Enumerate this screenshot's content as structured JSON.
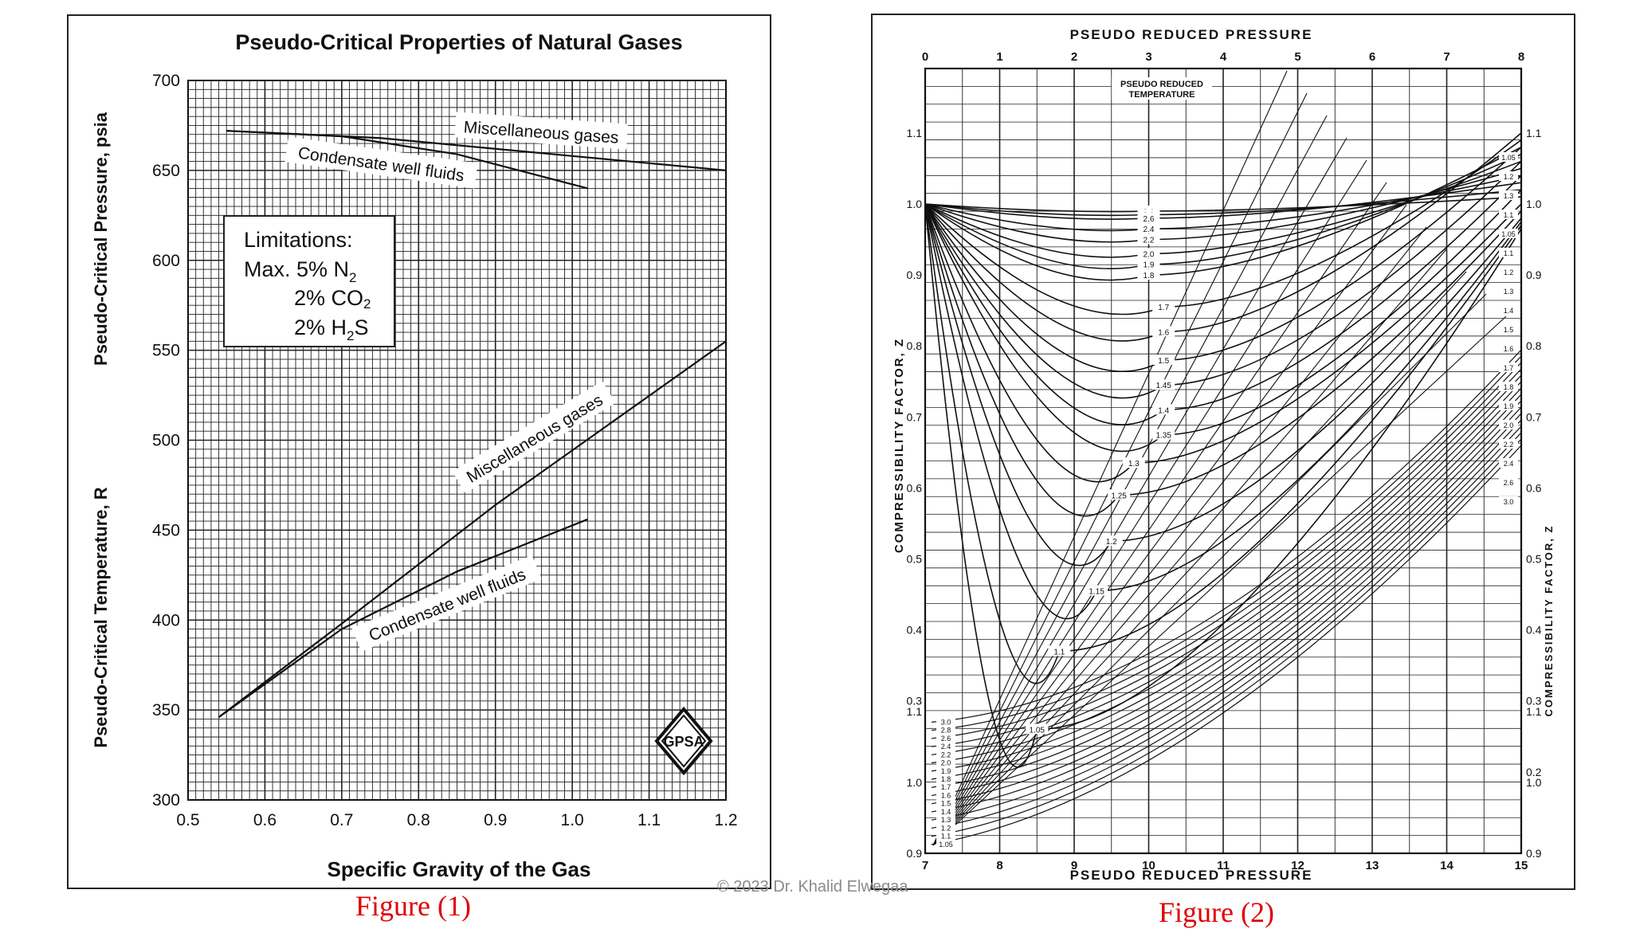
{
  "chart_data": [
    {
      "type": "line",
      "title": "Pseudo-Critical Properties of Natural Gases",
      "xlabel": "Specific Gravity of the Gas",
      "ylabel_top": "Pseudo-Critical Pressure, psia",
      "ylabel_bottom": "Pseudo-Critical Temperature, R",
      "xlim": [
        0.5,
        1.2
      ],
      "ylim": [
        300,
        700
      ],
      "x_ticks": [
        "0.5",
        "0.6",
        "0.7",
        "0.8",
        "0.9",
        "1.0",
        "1.1",
        "1.2"
      ],
      "y_ticks": [
        "300",
        "350",
        "400",
        "450",
        "500",
        "550",
        "600",
        "650",
        "700"
      ],
      "grid": true,
      "series": [
        {
          "name": "Miscellaneous gases",
          "property": "pressure",
          "x": [
            0.55,
            0.75,
            1.0,
            1.2
          ],
          "values": [
            672,
            668,
            658,
            650
          ]
        },
        {
          "name": "Condensate well fluids",
          "property": "pressure",
          "x": [
            0.55,
            0.7,
            0.85,
            1.02
          ],
          "values": [
            672,
            669,
            659,
            640
          ]
        },
        {
          "name": "Miscellaneous gases",
          "property": "temperature",
          "x": [
            0.54,
            0.7,
            0.9,
            1.2
          ],
          "values": [
            346,
            398,
            464,
            555
          ]
        },
        {
          "name": "Condensate well fluids",
          "property": "temperature",
          "x": [
            0.54,
            0.7,
            0.85,
            1.02
          ],
          "values": [
            346,
            395,
            427,
            456
          ]
        }
      ],
      "annotation": {
        "title": "Limitations:",
        "lines": [
          {
            "text": "Max. 5% N",
            "sub": "2"
          },
          {
            "text": "2% CO",
            "sub": "2"
          },
          {
            "text": "2% H",
            "sub": "2",
            "tail": "S"
          }
        ]
      },
      "logo": "gpsa-diamond-logo"
    },
    {
      "type": "line",
      "xlabel_top": "PSEUDO REDUCED PRESSURE",
      "xlabel_bottom": "PSEUDO REDUCED PRESSURE",
      "ylabel_left": "COMPRESSIBILITY FACTOR, Z",
      "ylabel_right": "COMPRESSIBILITY FACTOR, Z",
      "top_axis": {
        "range": [
          0,
          8
        ],
        "ticks": [
          "0",
          "1",
          "2",
          "3",
          "4",
          "5",
          "6",
          "7",
          "8"
        ]
      },
      "bottom_axis": {
        "range": [
          7,
          15
        ],
        "ticks": [
          "7",
          "8",
          "9",
          "10",
          "11",
          "12",
          "13",
          "14",
          "15"
        ]
      },
      "left_upper_ticks": [
        "1.1",
        "1.0",
        "0.9",
        "0.8",
        "0.7",
        "0.6",
        "0.5",
        "0.4",
        "0.3"
      ],
      "left_lower_ticks": [
        "1.1",
        "1.0",
        "0.9"
      ],
      "right_upper_ticks": [
        "1.1",
        "1.0",
        "0.9",
        "0.8",
        "0.7",
        "0.6",
        "0.5",
        "0.4",
        "0.3",
        "0.2"
      ],
      "right_lower_ticks": [
        "1.1",
        "1.0",
        "0.9"
      ],
      "reduced_temperature_label": [
        "PSEUDO REDUCED",
        "TEMPERATURE"
      ],
      "upper_curves": [
        {
          "name": "3.0",
          "points": [
            [
              0,
              1.0
            ],
            [
              3,
              0.99
            ],
            [
              8,
              1.01
            ]
          ]
        },
        {
          "name": "2.8",
          "points": [
            [
              0,
              1.0
            ],
            [
              3,
              0.985
            ],
            [
              8,
              1.02
            ]
          ]
        },
        {
          "name": "2.6",
          "points": [
            [
              0,
              1.0
            ],
            [
              3,
              0.98
            ],
            [
              8,
              1.03
            ]
          ]
        },
        {
          "name": "2.4",
          "points": [
            [
              0,
              1.0
            ],
            [
              3,
              0.965
            ],
            [
              8,
              1.04
            ]
          ]
        },
        {
          "name": "2.2",
          "points": [
            [
              0,
              1.0
            ],
            [
              3,
              0.95
            ],
            [
              8,
              1.05
            ]
          ]
        },
        {
          "name": "2.0",
          "points": [
            [
              0,
              1.0
            ],
            [
              3,
              0.93
            ],
            [
              8,
              1.06
            ]
          ]
        },
        {
          "name": "1.9",
          "points": [
            [
              0,
              1.0
            ],
            [
              3,
              0.915
            ],
            [
              8,
              1.07
            ]
          ]
        },
        {
          "name": "1.8",
          "points": [
            [
              0,
              1.0
            ],
            [
              3,
              0.9
            ],
            [
              8,
              1.08
            ]
          ]
        },
        {
          "name": "1.7",
          "points": [
            [
              0,
              1.0
            ],
            [
              3.2,
              0.855
            ],
            [
              8,
              1.09
            ]
          ]
        },
        {
          "name": "1.6",
          "points": [
            [
              0,
              1.0
            ],
            [
              3.2,
              0.82
            ],
            [
              8,
              1.1
            ]
          ]
        },
        {
          "name": "1.5",
          "points": [
            [
              0,
              1.0
            ],
            [
              3.2,
              0.78
            ],
            [
              8,
              1.08
            ]
          ]
        },
        {
          "name": "1.45",
          "points": [
            [
              0,
              1.0
            ],
            [
              3.2,
              0.745
            ],
            [
              8,
              1.06
            ]
          ]
        },
        {
          "name": "1.4",
          "points": [
            [
              0,
              1.0
            ],
            [
              3.2,
              0.71
            ],
            [
              8,
              1.04
            ]
          ]
        },
        {
          "name": "1.35",
          "points": [
            [
              0,
              1.0
            ],
            [
              3.2,
              0.675
            ],
            [
              8,
              1.02
            ]
          ]
        },
        {
          "name": "1.3",
          "points": [
            [
              0,
              1.0
            ],
            [
              2.8,
              0.635
            ],
            [
              8,
              1.0
            ]
          ]
        },
        {
          "name": "1.25",
          "points": [
            [
              0,
              1.0
            ],
            [
              2.6,
              0.59
            ],
            [
              8,
              0.99
            ]
          ]
        },
        {
          "name": "1.2",
          "points": [
            [
              0,
              1.0
            ],
            [
              2.5,
              0.525
            ],
            [
              8,
              0.98
            ]
          ]
        },
        {
          "name": "1.15",
          "points": [
            [
              0,
              1.0
            ],
            [
              2.3,
              0.455
            ],
            [
              8,
              0.975
            ]
          ]
        },
        {
          "name": "1.1",
          "points": [
            [
              0,
              1.0
            ],
            [
              1.8,
              0.37
            ],
            [
              8,
              0.97
            ]
          ]
        },
        {
          "name": "1.05",
          "points": [
            [
              0,
              1.0
            ],
            [
              1.5,
              0.26
            ],
            [
              8,
              0.965
            ]
          ]
        }
      ],
      "upper_right_labels": [
        "1.05",
        "1.2",
        "1.3",
        "1.1",
        "1.05",
        "1.1",
        "1.2",
        "1.3",
        "1.4",
        "1.5",
        "1.6",
        "1.7",
        "1.8",
        "1.9",
        "2.0",
        "2.2",
        "2.4",
        "2.6",
        "3.0"
      ],
      "lower_labels": [
        "3.0",
        "2.8",
        "2.6",
        "2.4",
        "2.2",
        "2.0",
        "1.9",
        "1.8",
        "1.7",
        "1.6",
        "1.5",
        "1.4",
        "1.3",
        "1.2",
        "1.1",
        "1.05"
      ]
    }
  ],
  "captions": {
    "fig1": "Figure (1)",
    "fig2": "Figure (2)"
  },
  "copyright": "© 2023 Dr. Khalid Elwegaa"
}
